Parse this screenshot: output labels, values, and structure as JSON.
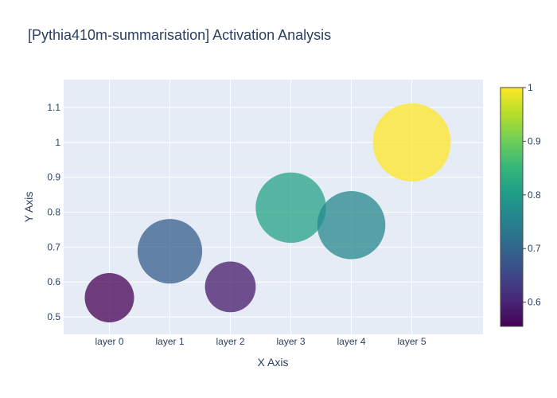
{
  "chart_data": {
    "type": "scatter",
    "title": "[Pythia410m-summarisation] Activation Analysis",
    "xlabel": "X Axis",
    "ylabel": "Y Axis",
    "categories": [
      "layer 0",
      "layer 1",
      "layer 2",
      "layer 3",
      "layer 4",
      "layer 5"
    ],
    "values": [
      0.555,
      0.688,
      0.586,
      0.813,
      0.763,
      1.0
    ],
    "sizes": [
      0.555,
      0.688,
      0.586,
      0.813,
      0.763,
      1.0
    ],
    "ylim": [
      0.45,
      1.18
    ],
    "yticks": [
      "0.5",
      "0.6",
      "0.7",
      "0.8",
      "0.9",
      "1",
      "1.1"
    ],
    "grid": true,
    "colorbar": {
      "colorscale": "Viridis",
      "range": [
        0.555,
        1.0
      ],
      "ticks": [
        "0.6",
        "0.7",
        "0.8",
        "0.9",
        "1"
      ]
    },
    "plot_bg": "#e5ecf6"
  }
}
